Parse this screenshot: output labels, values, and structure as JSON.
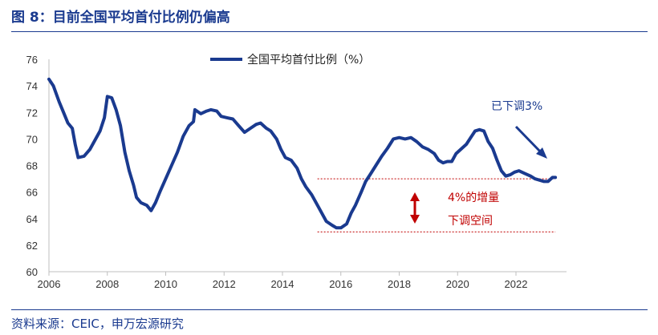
{
  "figure": {
    "title": "图 8：目前全国平均首付比例仍偏高",
    "source": "资料来源：CEIC，申万宏源研究"
  },
  "chart_data": {
    "type": "line",
    "title": "",
    "xlabel": "",
    "ylabel": "",
    "xlim": [
      2006,
      2023.4
    ],
    "ylim": [
      60,
      76
    ],
    "x_ticks": [
      "2006",
      "2008",
      "2010",
      "2012",
      "2014",
      "2016",
      "2018",
      "2020",
      "2022"
    ],
    "y_ticks": [
      "60",
      "62",
      "64",
      "66",
      "68",
      "70",
      "72",
      "74",
      "76"
    ],
    "grid": false,
    "legend_position": "top-center",
    "series": [
      {
        "name": "全国平均首付比例（%）",
        "color": "#1a3a8f",
        "points": [
          [
            2006.0,
            74.5
          ],
          [
            2006.15,
            74.0
          ],
          [
            2006.35,
            72.8
          ],
          [
            2006.5,
            72.0
          ],
          [
            2006.65,
            71.2
          ],
          [
            2006.8,
            70.8
          ],
          [
            2006.9,
            69.6
          ],
          [
            2007.0,
            68.6
          ],
          [
            2007.2,
            68.7
          ],
          [
            2007.4,
            69.2
          ],
          [
            2007.6,
            70.0
          ],
          [
            2007.75,
            70.6
          ],
          [
            2007.9,
            71.6
          ],
          [
            2008.0,
            73.2
          ],
          [
            2008.15,
            73.1
          ],
          [
            2008.3,
            72.2
          ],
          [
            2008.45,
            71.0
          ],
          [
            2008.6,
            69.0
          ],
          [
            2008.75,
            67.6
          ],
          [
            2008.9,
            66.5
          ],
          [
            2009.0,
            65.6
          ],
          [
            2009.15,
            65.2
          ],
          [
            2009.35,
            65.0
          ],
          [
            2009.5,
            64.6
          ],
          [
            2009.65,
            65.2
          ],
          [
            2009.8,
            66.0
          ],
          [
            2010.0,
            67.0
          ],
          [
            2010.2,
            68.0
          ],
          [
            2010.4,
            69.0
          ],
          [
            2010.6,
            70.2
          ],
          [
            2010.8,
            71.0
          ],
          [
            2010.95,
            71.3
          ],
          [
            2011.0,
            72.2
          ],
          [
            2011.2,
            71.9
          ],
          [
            2011.4,
            72.1
          ],
          [
            2011.55,
            72.2
          ],
          [
            2011.75,
            72.1
          ],
          [
            2011.9,
            71.7
          ],
          [
            2012.1,
            71.6
          ],
          [
            2012.3,
            71.5
          ],
          [
            2012.5,
            71.0
          ],
          [
            2012.7,
            70.5
          ],
          [
            2012.9,
            70.8
          ],
          [
            2013.1,
            71.1
          ],
          [
            2013.25,
            71.2
          ],
          [
            2013.45,
            70.8
          ],
          [
            2013.6,
            70.6
          ],
          [
            2013.8,
            70.0
          ],
          [
            2013.95,
            69.2
          ],
          [
            2014.1,
            68.6
          ],
          [
            2014.3,
            68.4
          ],
          [
            2014.5,
            67.8
          ],
          [
            2014.65,
            67.0
          ],
          [
            2014.8,
            66.4
          ],
          [
            2015.0,
            65.8
          ],
          [
            2015.2,
            65.0
          ],
          [
            2015.35,
            64.4
          ],
          [
            2015.5,
            63.8
          ],
          [
            2015.7,
            63.5
          ],
          [
            2015.85,
            63.3
          ],
          [
            2016.0,
            63.3
          ],
          [
            2016.2,
            63.6
          ],
          [
            2016.35,
            64.4
          ],
          [
            2016.5,
            65.0
          ],
          [
            2016.7,
            66.0
          ],
          [
            2016.85,
            66.8
          ],
          [
            2017.0,
            67.3
          ],
          [
            2017.2,
            68.0
          ],
          [
            2017.4,
            68.7
          ],
          [
            2017.6,
            69.3
          ],
          [
            2017.8,
            70.0
          ],
          [
            2018.0,
            70.1
          ],
          [
            2018.2,
            70.0
          ],
          [
            2018.4,
            70.1
          ],
          [
            2018.6,
            69.8
          ],
          [
            2018.8,
            69.4
          ],
          [
            2019.0,
            69.2
          ],
          [
            2019.2,
            68.9
          ],
          [
            2019.35,
            68.4
          ],
          [
            2019.5,
            68.2
          ],
          [
            2019.65,
            68.3
          ],
          [
            2019.8,
            68.3
          ],
          [
            2019.95,
            68.9
          ],
          [
            2020.1,
            69.2
          ],
          [
            2020.3,
            69.6
          ],
          [
            2020.45,
            70.1
          ],
          [
            2020.6,
            70.6
          ],
          [
            2020.75,
            70.7
          ],
          [
            2020.9,
            70.6
          ],
          [
            2021.05,
            69.8
          ],
          [
            2021.2,
            69.3
          ],
          [
            2021.35,
            68.4
          ],
          [
            2021.5,
            67.6
          ],
          [
            2021.65,
            67.2
          ],
          [
            2021.8,
            67.3
          ],
          [
            2021.95,
            67.5
          ],
          [
            2022.1,
            67.6
          ],
          [
            2022.3,
            67.4
          ],
          [
            2022.5,
            67.2
          ],
          [
            2022.65,
            67.0
          ],
          [
            2022.8,
            66.9
          ],
          [
            2022.95,
            66.8
          ],
          [
            2023.1,
            66.8
          ],
          [
            2023.25,
            67.1
          ],
          [
            2023.35,
            67.1
          ]
        ]
      }
    ],
    "annotations": {
      "decline_label": "已下调3%",
      "gap_label_line1": "4%的增量",
      "gap_label_line2": "下调空间",
      "reference_lines": [
        67.0,
        63.0
      ],
      "reference_color": "#c00000"
    }
  }
}
